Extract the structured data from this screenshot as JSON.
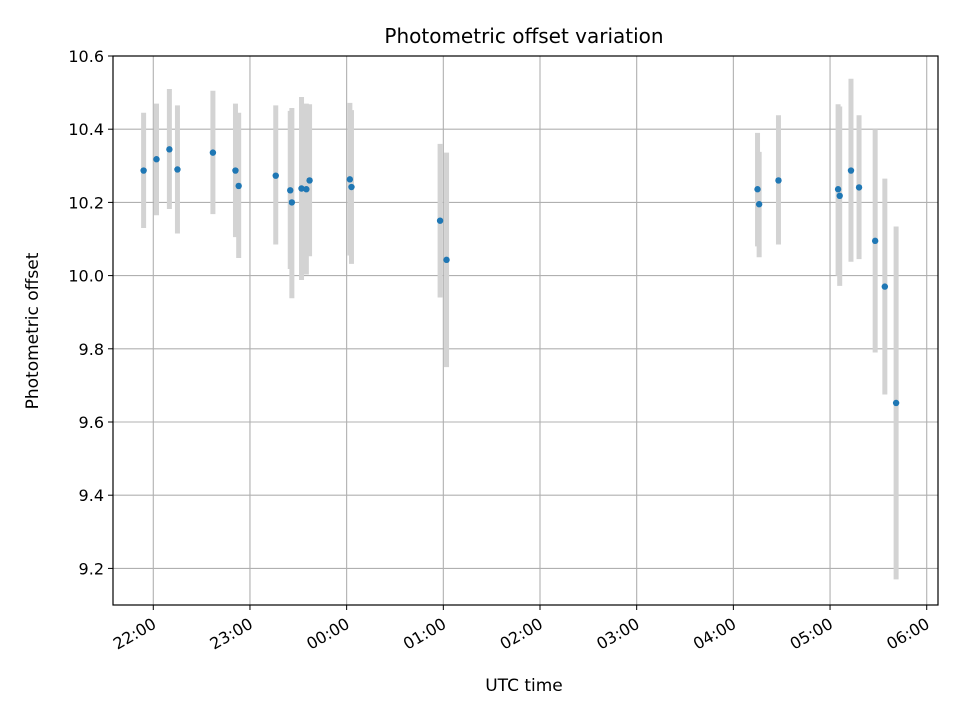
{
  "chart_data": {
    "type": "scatter",
    "title": "Photometric offset variation",
    "xlabel": "UTC time",
    "ylabel": "Photometric offset",
    "x_axis_kind": "time",
    "xlim": [
      "21:35",
      "06:07"
    ],
    "ylim": [
      9.1,
      10.6
    ],
    "x_ticks": [
      "22:00",
      "23:00",
      "00:00",
      "01:00",
      "02:00",
      "03:00",
      "04:00",
      "05:00",
      "06:00"
    ],
    "y_ticks": [
      "9.2",
      "9.4",
      "9.6",
      "9.8",
      "10.0",
      "10.2",
      "10.4",
      "10.6"
    ],
    "grid": true,
    "colors": {
      "point": "#1f77b4",
      "errorbar": "#d3d3d3",
      "grid": "#b0b0b0"
    },
    "series": [
      {
        "points": [
          {
            "t": "21:54",
            "y": 10.287,
            "ylo": 10.13,
            "yhi": 10.445
          },
          {
            "t": "22:02",
            "y": 10.318,
            "ylo": 10.165,
            "yhi": 10.47
          },
          {
            "t": "22:10",
            "y": 10.345,
            "ylo": 10.182,
            "yhi": 10.51
          },
          {
            "t": "22:15",
            "y": 10.29,
            "ylo": 10.115,
            "yhi": 10.465
          },
          {
            "t": "22:37",
            "y": 10.336,
            "ylo": 10.168,
            "yhi": 10.505
          },
          {
            "t": "22:51",
            "y": 10.287,
            "ylo": 10.105,
            "yhi": 10.47
          },
          {
            "t": "22:53",
            "y": 10.245,
            "ylo": 10.048,
            "yhi": 10.445
          },
          {
            "t": "23:16",
            "y": 10.273,
            "ylo": 10.085,
            "yhi": 10.465
          },
          {
            "t": "23:25",
            "y": 10.233,
            "ylo": 10.018,
            "yhi": 10.45
          },
          {
            "t": "23:26",
            "y": 10.2,
            "ylo": 9.938,
            "yhi": 10.458
          },
          {
            "t": "23:32",
            "y": 10.238,
            "ylo": 9.988,
            "yhi": 10.488
          },
          {
            "t": "23:35",
            "y": 10.236,
            "ylo": 10.003,
            "yhi": 10.47
          },
          {
            "t": "23:37",
            "y": 10.26,
            "ylo": 10.053,
            "yhi": 10.468
          },
          {
            "t": "00:02",
            "y": 10.263,
            "ylo": 10.055,
            "yhi": 10.472
          },
          {
            "t": "00:03",
            "y": 10.242,
            "ylo": 10.032,
            "yhi": 10.452
          },
          {
            "t": "00:58",
            "y": 10.15,
            "ylo": 9.94,
            "yhi": 10.36
          },
          {
            "t": "01:02",
            "y": 10.043,
            "ylo": 9.75,
            "yhi": 10.336
          },
          {
            "t": "04:15",
            "y": 10.236,
            "ylo": 10.08,
            "yhi": 10.39
          },
          {
            "t": "04:16",
            "y": 10.195,
            "ylo": 10.05,
            "yhi": 10.338
          },
          {
            "t": "04:28",
            "y": 10.26,
            "ylo": 10.085,
            "yhi": 10.438
          },
          {
            "t": "05:05",
            "y": 10.236,
            "ylo": 10.0,
            "yhi": 10.468
          },
          {
            "t": "05:06",
            "y": 10.218,
            "ylo": 9.972,
            "yhi": 10.462
          },
          {
            "t": "05:13",
            "y": 10.287,
            "ylo": 10.038,
            "yhi": 10.538
          },
          {
            "t": "05:18",
            "y": 10.241,
            "ylo": 10.045,
            "yhi": 10.438
          },
          {
            "t": "05:28",
            "y": 10.095,
            "ylo": 9.79,
            "yhi": 10.4
          },
          {
            "t": "05:34",
            "y": 9.97,
            "ylo": 9.675,
            "yhi": 10.265
          },
          {
            "t": "05:41",
            "y": 9.652,
            "ylo": 9.17,
            "yhi": 10.134
          }
        ]
      }
    ]
  }
}
